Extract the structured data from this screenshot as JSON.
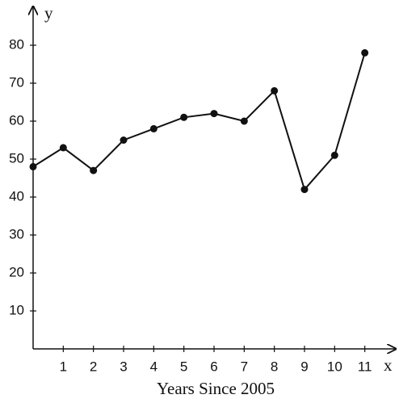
{
  "chart_data": {
    "type": "line",
    "x_label": "Years Since 2005",
    "x_axis_name": "x",
    "y_axis_name": "y",
    "x": [
      0,
      1,
      2,
      3,
      4,
      5,
      6,
      7,
      8,
      9,
      10,
      11
    ],
    "values": [
      48,
      53,
      47,
      55,
      58,
      61,
      62,
      60,
      68,
      42,
      51,
      78
    ],
    "color": "#111111",
    "xlim": [
      0,
      12
    ],
    "ylim": [
      0,
      90
    ],
    "xticks": [
      1,
      2,
      3,
      4,
      5,
      6,
      7,
      8,
      9,
      10,
      11
    ],
    "yticks": [
      10,
      20,
      30,
      40,
      50,
      60,
      70,
      80
    ],
    "grid": false
  }
}
